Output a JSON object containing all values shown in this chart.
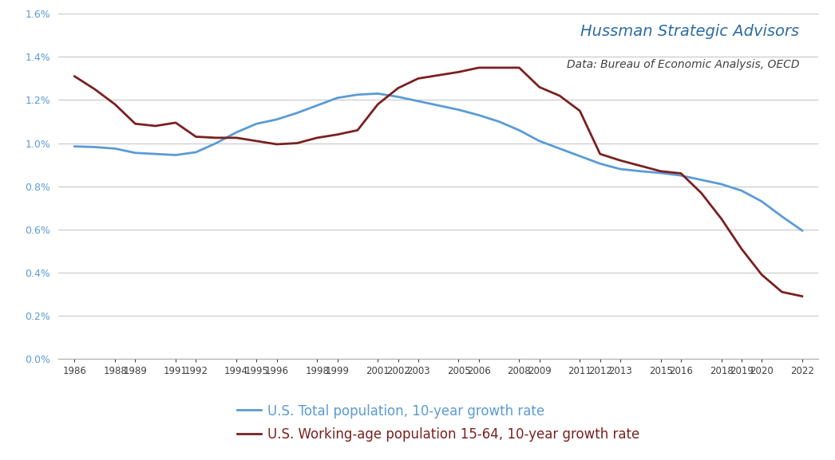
{
  "title_main": "Hussman Strategic Advisors",
  "title_sub": "Data: Bureau of Economic Analysis, OECD",
  "legend_blue": "U.S. Total population, 10-year growth rate",
  "legend_red": "U.S. Working-age population 15-64, 10-year growth rate",
  "background_color": "#ffffff",
  "plot_bg_color": "#ffffff",
  "blue_color": "#5b9bd5",
  "red_color": "#7b2020",
  "ytick_color": "#5b9bd5",
  "xtick_color": "#404040",
  "ylim_min": 0.0,
  "ylim_max": 0.016,
  "yticks": [
    0.0,
    0.002,
    0.004,
    0.006,
    0.008,
    0.01,
    0.012,
    0.014,
    0.016
  ],
  "blue_years": [
    1986,
    1987,
    1988,
    1989,
    1990,
    1991,
    1992,
    1993,
    1994,
    1995,
    1996,
    1997,
    1998,
    1999,
    2000,
    2001,
    2002,
    2003,
    2004,
    2005,
    2006,
    2007,
    2008,
    2009,
    2010,
    2011,
    2012,
    2013,
    2014,
    2015,
    2016,
    2017,
    2018,
    2019,
    2020,
    2021,
    2022
  ],
  "blue_values": [
    0.00985,
    0.00982,
    0.00975,
    0.00955,
    0.0095,
    0.00945,
    0.00958,
    0.01,
    0.0105,
    0.0109,
    0.0111,
    0.0114,
    0.01175,
    0.0121,
    0.01225,
    0.0123,
    0.01215,
    0.01195,
    0.01175,
    0.01155,
    0.0113,
    0.011,
    0.0106,
    0.0101,
    0.00975,
    0.0094,
    0.00905,
    0.0088,
    0.0087,
    0.00862,
    0.0085,
    0.0083,
    0.0081,
    0.0078,
    0.0073,
    0.0066,
    0.00595
  ],
  "red_years": [
    1986,
    1987,
    1988,
    1989,
    1990,
    1991,
    1992,
    1993,
    1994,
    1995,
    1996,
    1997,
    1998,
    1999,
    2000,
    2001,
    2002,
    2003,
    2004,
    2005,
    2006,
    2007,
    2008,
    2009,
    2010,
    2011,
    2012,
    2013,
    2014,
    2015,
    2016,
    2017,
    2018,
    2019,
    2020,
    2021,
    2022
  ],
  "red_values": [
    0.0131,
    0.0125,
    0.0118,
    0.0109,
    0.0108,
    0.01095,
    0.0103,
    0.01025,
    0.01025,
    0.0101,
    0.00995,
    0.01,
    0.01025,
    0.0104,
    0.0106,
    0.0118,
    0.01255,
    0.013,
    0.01315,
    0.0133,
    0.0135,
    0.0135,
    0.0135,
    0.0126,
    0.0122,
    0.0115,
    0.0095,
    0.0092,
    0.00895,
    0.0087,
    0.0086,
    0.0077,
    0.0065,
    0.0051,
    0.0039,
    0.0031,
    0.0029
  ],
  "xtick_years": [
    1986,
    1988,
    1989,
    1991,
    1992,
    1994,
    1995,
    1996,
    1998,
    1999,
    2001,
    2002,
    2003,
    2005,
    2006,
    2008,
    2009,
    2011,
    2012,
    2013,
    2015,
    2016,
    2018,
    2019,
    2020,
    2022
  ],
  "grid_color": "#c8c8c8",
  "title_main_color": "#2e6da4",
  "title_sub_color": "#404040",
  "title_main_size": 14,
  "title_sub_size": 10,
  "legend_fontsize": 12,
  "linewidth": 2.0
}
